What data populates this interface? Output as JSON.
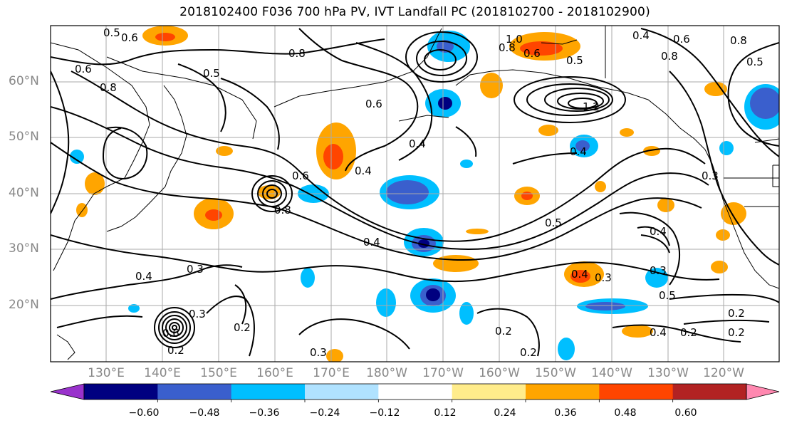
{
  "title": "2018102400 F036 700 hPa PV, IVT Landfall PC (2018102700 - 2018102900)",
  "lat_labels": [
    "60°N",
    "50°N",
    "40°N",
    "30°N",
    "20°N"
  ],
  "lon_labels": [
    "130°E",
    "140°E",
    "150°E",
    "160°E",
    "170°E",
    "180°W",
    "170°W",
    "160°W",
    "150°W",
    "140°W",
    "130°W",
    "120°W"
  ],
  "colorbar": {
    "ticks": [
      "−0.60",
      "−0.48",
      "−0.36",
      "−0.24",
      "−0.12",
      "0.12",
      "0.24",
      "0.36",
      "0.48",
      "0.60"
    ],
    "colors": [
      "#9932CC",
      "#000080",
      "#3A5FCD",
      "#00BFFF",
      "#B0E2FF",
      "#FFFFFF",
      "#FFEC8B",
      "#FFA500",
      "#FF4500",
      "#B22222",
      "#FF88B0"
    ]
  },
  "contour_labels": [
    "0.5",
    "0.6",
    "1.0",
    "0.8",
    "0.6",
    "0.4",
    "0.8",
    "0.8",
    "0.6",
    "0.8",
    "0.5",
    "0.8",
    "0.5",
    "0.6",
    "0.4",
    "1.2",
    "0.6",
    "0.4",
    "0.5",
    "0.4",
    "0.6",
    "0.8",
    "0.4",
    "0.5",
    "0.4",
    "0.4",
    "0.3",
    "0.4",
    "0.3",
    "0.3",
    "0.3",
    "0.2",
    "0.6",
    "0.2",
    "0.3",
    "0.2",
    "0.2",
    "0.4",
    "0.2",
    "0.5",
    "0.2",
    "0.2",
    "0.3"
  ]
}
